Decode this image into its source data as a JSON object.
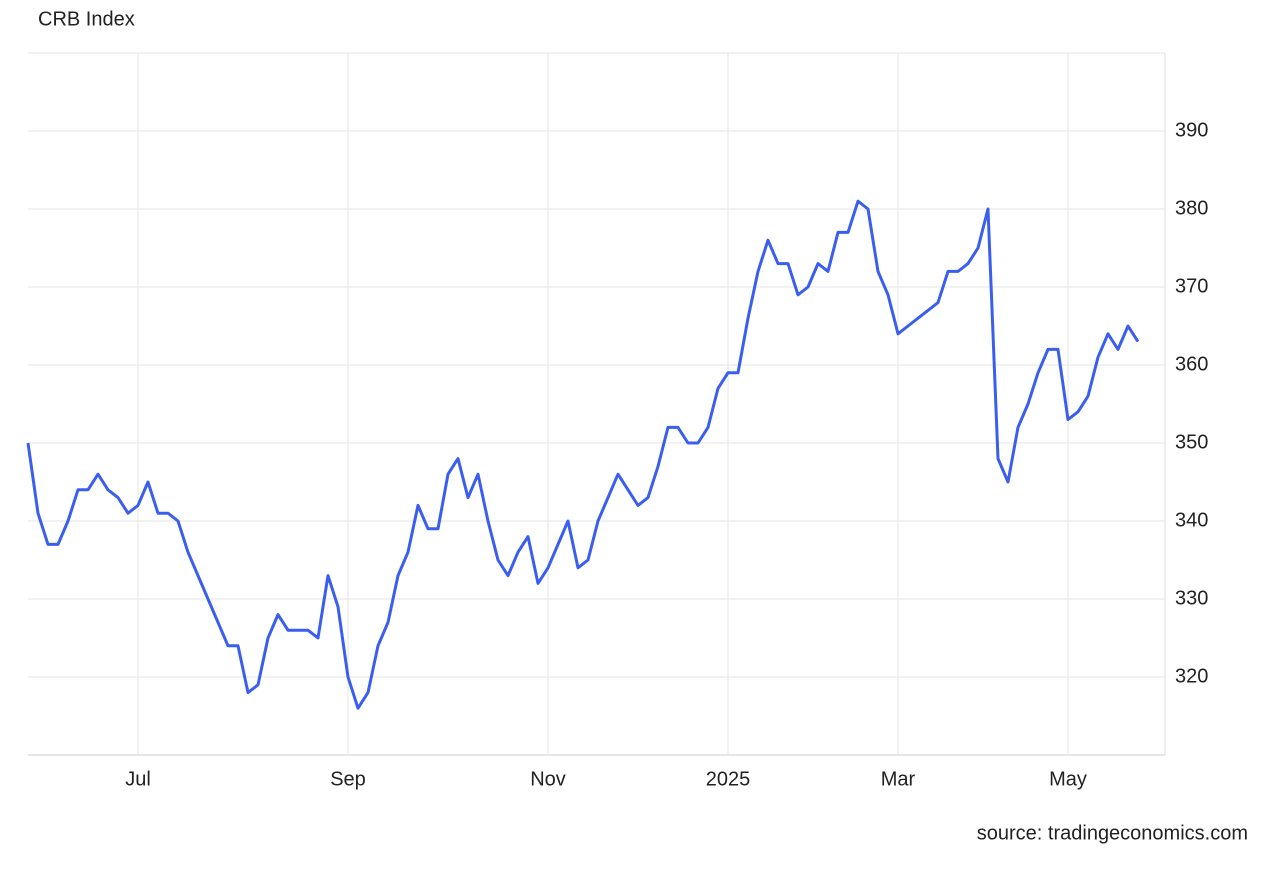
{
  "chart_data": {
    "type": "line",
    "title": "CRB Index",
    "source": "source: tradingeconomics.com",
    "categories": [
      null,
      null,
      null,
      null,
      null,
      null,
      null,
      null,
      null,
      null,
      null,
      "Jul",
      null,
      null,
      null,
      null,
      null,
      null,
      null,
      null,
      null,
      null,
      null,
      null,
      null,
      null,
      null,
      null,
      null,
      null,
      null,
      null,
      "Sep",
      null,
      null,
      null,
      null,
      null,
      null,
      null,
      null,
      null,
      null,
      null,
      null,
      null,
      null,
      null,
      null,
      null,
      null,
      null,
      "Nov",
      null,
      null,
      null,
      null,
      null,
      null,
      null,
      null,
      null,
      null,
      null,
      null,
      null,
      null,
      null,
      null,
      null,
      "2025",
      null,
      null,
      null,
      null,
      null,
      null,
      null,
      null,
      null,
      null,
      null,
      null,
      null,
      null,
      null,
      null,
      "Mar",
      null,
      null,
      null,
      null,
      null,
      null,
      null,
      null,
      null,
      null,
      null,
      null,
      null,
      null,
      null,
      null,
      "May",
      null,
      null,
      null,
      null,
      null,
      null,
      null
    ],
    "values": [
      350,
      341,
      337,
      337,
      340,
      344,
      344,
      346,
      344,
      343,
      341,
      342,
      345,
      341,
      341,
      340,
      336,
      333,
      330,
      327,
      324,
      324,
      318,
      319,
      325,
      328,
      326,
      326,
      326,
      325,
      333,
      329,
      320,
      316,
      318,
      324,
      327,
      333,
      336,
      342,
      339,
      339,
      346,
      348,
      343,
      346,
      340,
      335,
      333,
      336,
      338,
      332,
      334,
      337,
      340,
      334,
      335,
      340,
      343,
      346,
      344,
      342,
      343,
      347,
      352,
      352,
      350,
      350,
      352,
      357,
      359,
      359,
      366,
      372,
      376,
      373,
      373,
      369,
      370,
      373,
      372,
      377,
      377,
      381,
      380,
      372,
      369,
      364,
      365,
      366,
      367,
      368,
      372,
      372,
      373,
      375,
      380,
      348,
      345,
      352,
      355,
      359,
      362,
      362,
      353,
      354,
      356,
      361,
      364,
      362,
      365,
      363
    ],
    "color": "#3a5ff0",
    "ylim": [
      310,
      400
    ],
    "yticks": [
      320,
      330,
      340,
      350,
      360,
      370,
      380,
      390
    ],
    "grid": true
  }
}
